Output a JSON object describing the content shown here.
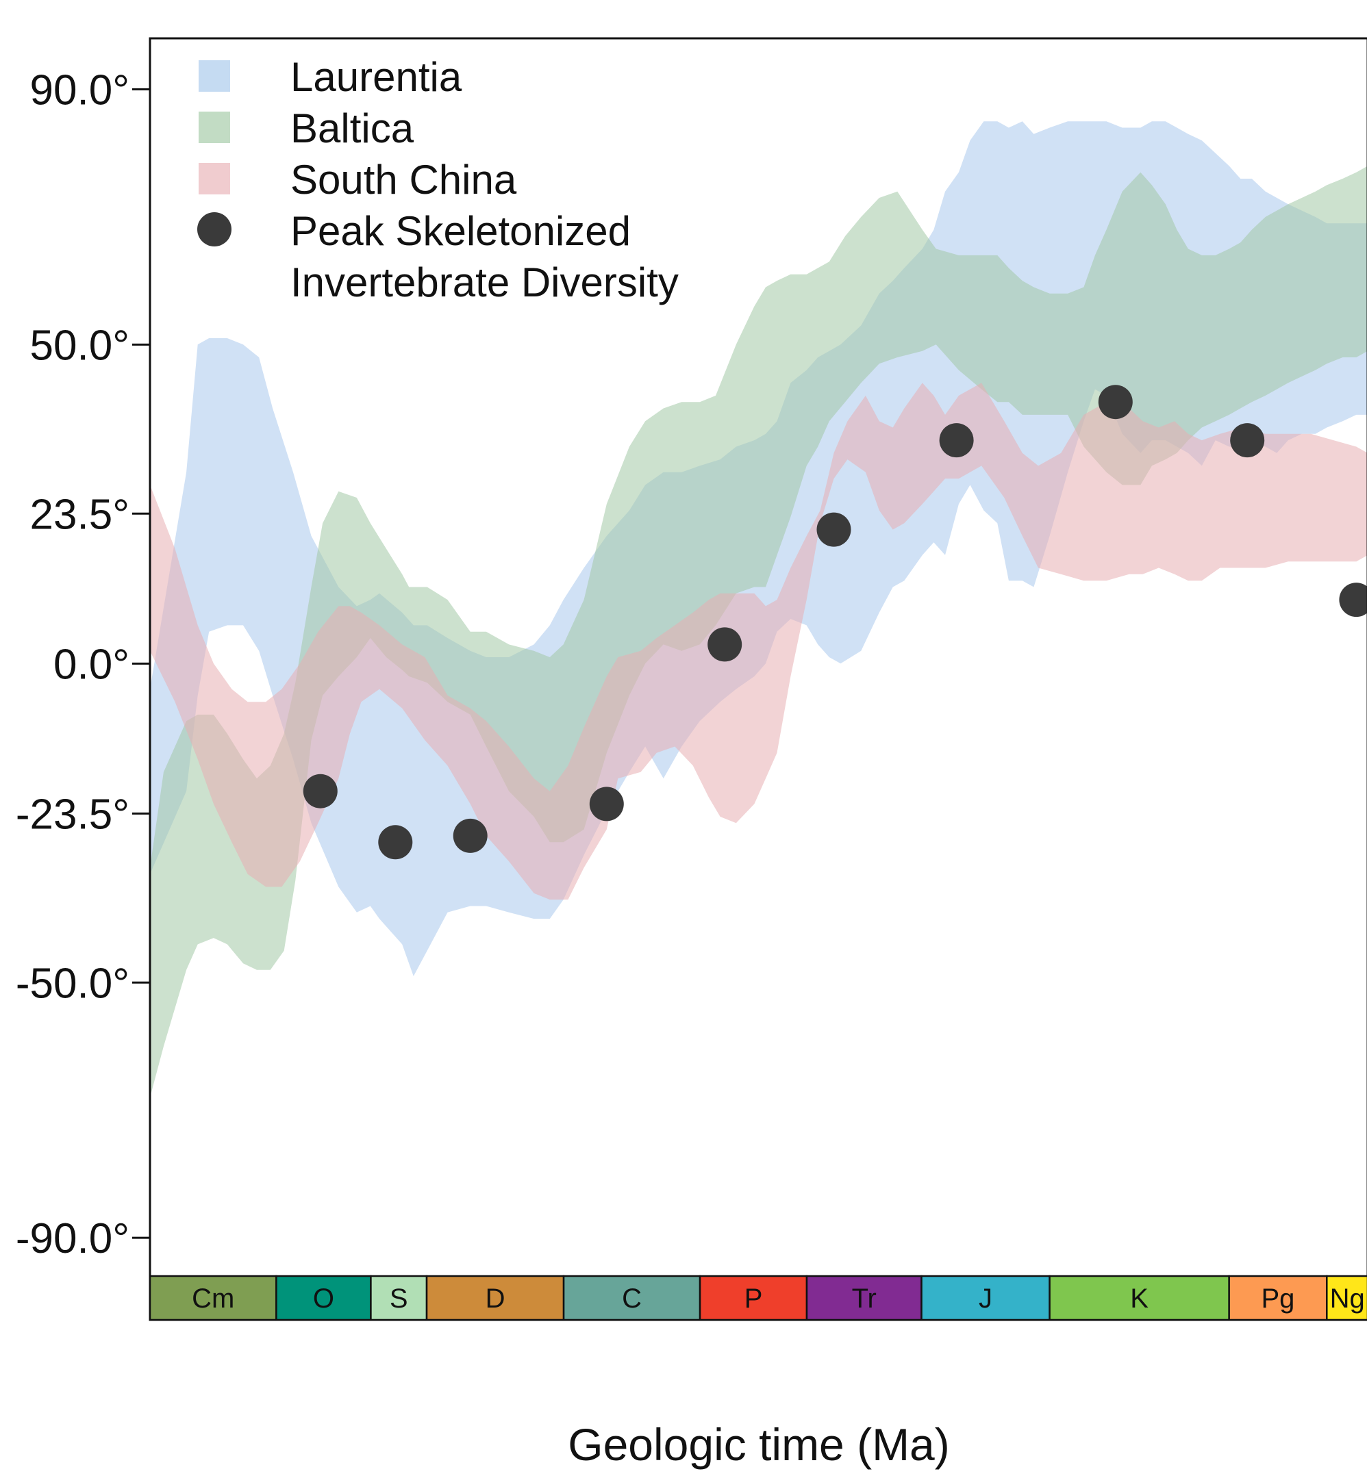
{
  "chart_data": {
    "type": "area",
    "title": "",
    "xlabel": "Geologic time (Ma)",
    "ylabel": "",
    "x_unit": "Ma",
    "xlim": [
      541,
      5
    ],
    "ylim": [
      -96,
      98
    ],
    "y_ticks": [
      {
        "value": 90,
        "label": "90.0°"
      },
      {
        "value": 50,
        "label": "50.0°"
      },
      {
        "value": 23.5,
        "label": "23.5°"
      },
      {
        "value": 0,
        "label": "0.0°"
      },
      {
        "value": -23.5,
        "label": "-23.5°"
      },
      {
        "value": -50,
        "label": "-50.0°"
      },
      {
        "value": -90,
        "label": "-90.0°"
      }
    ],
    "grid": false,
    "legend_position": "top-left",
    "legend": [
      {
        "label": "Laurentia",
        "kind": "band",
        "color": "#c5dbf2"
      },
      {
        "label": "Baltica",
        "kind": "band",
        "color": "#c2dcc4"
      },
      {
        "label": "South China",
        "kind": "band",
        "color": "#f0cccf"
      },
      {
        "label": "Peak Skeletonized",
        "label2": "Invertebrate Diversity",
        "kind": "point",
        "color": "#3a3a3a"
      }
    ],
    "series": [
      {
        "name": "Laurentia",
        "type": "band",
        "color": "#a9c8ec",
        "opacity": 0.55,
        "x": [
          541,
          525,
          520,
          515,
          507,
          500,
          493,
          487,
          478,
          470,
          458,
          450,
          444,
          440,
          430,
          425,
          419,
          410,
          400,
          393,
          383,
          372,
          365,
          359,
          350,
          340,
          330,
          323,
          315,
          307,
          299,
          290,
          283,
          275,
          270,
          265,
          259,
          252,
          247,
          242,
          237,
          228,
          220,
          214,
          209,
          201,
          196,
          191,
          185,
          180,
          174,
          168,
          163,
          157,
          152,
          145,
          137,
          130,
          125,
          120,
          113,
          105,
          100,
          94,
          89,
          84,
          78,
          72,
          66,
          61,
          56,
          50,
          45,
          40,
          34,
          28,
          23,
          16,
          10,
          5
        ],
        "lower": [
          -33,
          -20,
          -5,
          5,
          6,
          6,
          2,
          -5,
          -15,
          -25,
          -35,
          -39,
          -38,
          -40,
          -44,
          -49,
          -45,
          -39,
          -38,
          -38,
          -39,
          -40,
          -40,
          -37,
          -30,
          -23,
          -17,
          -13,
          -18,
          -13,
          -9,
          -6,
          -4,
          -2,
          0,
          5,
          7,
          6,
          3,
          1,
          0,
          2,
          8,
          12,
          13,
          17,
          19,
          17,
          25,
          28,
          24,
          22,
          13,
          13,
          12,
          20,
          30,
          38,
          43,
          42,
          36,
          33,
          35,
          35,
          34,
          33,
          31,
          35,
          34,
          34,
          35,
          34,
          33,
          35,
          36,
          36,
          37,
          38,
          39,
          39
        ],
        "upper": [
          -4,
          30,
          50,
          51,
          51,
          50,
          48,
          40,
          30,
          20,
          12,
          9,
          10,
          11,
          8,
          6,
          6,
          4,
          2,
          1,
          1,
          3,
          6,
          10,
          15,
          20,
          24,
          28,
          30,
          30,
          31,
          32,
          34,
          35,
          36,
          38,
          44,
          46,
          48,
          49,
          50,
          53,
          58,
          60,
          62,
          65,
          68,
          74,
          77,
          82,
          85,
          85,
          84,
          85,
          83,
          84,
          85,
          85,
          85,
          85,
          84,
          84,
          85,
          85,
          84,
          83,
          82,
          80,
          78,
          76,
          76,
          74,
          73,
          72,
          71,
          70,
          69,
          69,
          69,
          69
        ]
      },
      {
        "name": "Baltica",
        "type": "band",
        "color": "#a3c9a6",
        "opacity": 0.55,
        "x": [
          541,
          535,
          525,
          520,
          513,
          507,
          500,
          494,
          488,
          482,
          477,
          470,
          465,
          458,
          450,
          444,
          437,
          430,
          427,
          419,
          410,
          400,
          393,
          383,
          372,
          365,
          359,
          350,
          340,
          330,
          323,
          315,
          307,
          299,
          292,
          283,
          275,
          270,
          265,
          259,
          252,
          247,
          242,
          235,
          228,
          220,
          212,
          201,
          195,
          185,
          175,
          168,
          163,
          157,
          152,
          145,
          137,
          130,
          125,
          120,
          113,
          105,
          100,
          94,
          89,
          84,
          78,
          72,
          66,
          61,
          56,
          50,
          45,
          40,
          34,
          28,
          23,
          16,
          10,
          5
        ],
        "lower": [
          -68,
          -60,
          -48,
          -44,
          -43,
          -44,
          -47,
          -48,
          -48,
          -45,
          -34,
          -12,
          -5,
          -2,
          1,
          4,
          1,
          -1,
          -2,
          -3,
          -6,
          -8,
          -13,
          -20,
          -24,
          -28,
          -28,
          -26,
          -14,
          -5,
          0,
          3,
          2,
          3,
          6,
          11,
          12,
          12,
          17,
          23,
          31,
          34,
          38,
          41,
          44,
          47,
          48,
          49,
          50,
          46,
          43,
          41,
          41,
          39,
          39,
          39,
          39,
          34,
          32,
          30,
          28,
          28,
          31,
          32,
          33,
          35,
          37,
          38,
          39,
          40,
          41,
          42,
          43,
          44,
          45,
          46,
          47,
          48,
          48,
          49
        ],
        "upper": [
          -32,
          -17,
          -9,
          -8,
          -8,
          -11,
          -15,
          -18,
          -16,
          -11,
          -3,
          12,
          22,
          27,
          26,
          22,
          18,
          14,
          12,
          12,
          10,
          5,
          5,
          3,
          2,
          1,
          3,
          10,
          25,
          34,
          38,
          40,
          41,
          41,
          42,
          50,
          56,
          59,
          60,
          61,
          61,
          62,
          63,
          67,
          70,
          73,
          74,
          68,
          65,
          64,
          64,
          64,
          62,
          60,
          59,
          58,
          58,
          59,
          64,
          68,
          74,
          77,
          75,
          72,
          68,
          65,
          64,
          64,
          65,
          66,
          68,
          70,
          71,
          72,
          73,
          74,
          75,
          76,
          77,
          78
        ]
      },
      {
        "name": "South China",
        "type": "band",
        "color": "#e8aeb2",
        "opacity": 0.55,
        "x": [
          541,
          530,
          520,
          513,
          505,
          498,
          490,
          483,
          475,
          467,
          458,
          453,
          448,
          440,
          430,
          420,
          410,
          400,
          393,
          383,
          372,
          365,
          357,
          350,
          340,
          335,
          325,
          318,
          310,
          302,
          295,
          290,
          283,
          275,
          270,
          265,
          259,
          252,
          246,
          240,
          234,
          226,
          220,
          214,
          209,
          201,
          196,
          191,
          185,
          175,
          165,
          157,
          150,
          140,
          130,
          120,
          110,
          104,
          97,
          90,
          84,
          78,
          70,
          60,
          50,
          40,
          30,
          20,
          10,
          5
        ],
        "lower": [
          2,
          -6,
          -15,
          -22,
          -28,
          -33,
          -35,
          -35,
          -31,
          -25,
          -18,
          -11,
          -6,
          -4,
          -7,
          -12,
          -16,
          -22,
          -27,
          -31,
          -36,
          -37,
          -37,
          -32,
          -26,
          -18,
          -17,
          -14,
          -13,
          -16,
          -21,
          -24,
          -25,
          -22,
          -18,
          -14,
          -2,
          10,
          22,
          29,
          32,
          30,
          24,
          21,
          22,
          25,
          27,
          29,
          29,
          31,
          26,
          20,
          15,
          14,
          13,
          13,
          14,
          14,
          15,
          14,
          13,
          13,
          15,
          15,
          15,
          16,
          16,
          16,
          16,
          17
        ],
        "upper": [
          28,
          18,
          6,
          0,
          -4,
          -6,
          -6,
          -4,
          0,
          5,
          9,
          9,
          8,
          6,
          3,
          1,
          -5,
          -7,
          -9,
          -13,
          -18,
          -20,
          -16,
          -10,
          -2,
          1,
          2,
          4,
          6,
          8,
          10,
          11,
          11,
          11,
          9,
          10,
          15,
          20,
          24,
          33,
          38,
          42,
          38,
          37,
          40,
          44,
          42,
          39,
          42,
          44,
          38,
          33,
          31,
          33,
          39,
          41,
          40,
          38,
          37,
          38,
          36,
          35,
          36,
          37,
          36,
          36,
          36,
          35,
          34,
          33
        ]
      }
    ],
    "points": {
      "name": "Peak Skeletonized Invertebrate Diversity",
      "color": "#3a3a3a",
      "x": [
        466,
        433,
        400,
        340,
        288,
        240,
        186,
        116,
        58,
        10
      ],
      "y": [
        -20,
        -28,
        -27,
        -22,
        3,
        21,
        35,
        41,
        35,
        10
      ]
    },
    "periods": [
      {
        "label": "Cm",
        "start": 541,
        "end": 485.4,
        "color": "#7f9e52"
      },
      {
        "label": "O",
        "start": 485.4,
        "end": 443.8,
        "color": "#00937a"
      },
      {
        "label": "S",
        "start": 443.8,
        "end": 419.2,
        "color": "#b1dfb5"
      },
      {
        "label": "D",
        "start": 419.2,
        "end": 358.9,
        "color": "#cd8b3a"
      },
      {
        "label": "C",
        "start": 358.9,
        "end": 298.9,
        "color": "#67a599"
      },
      {
        "label": "P",
        "start": 298.9,
        "end": 251.9,
        "color": "#ef3f2b"
      },
      {
        "label": "Tr",
        "start": 251.9,
        "end": 201.4,
        "color": "#812b92"
      },
      {
        "label": "J",
        "start": 201.4,
        "end": 145,
        "color": "#34b2c9"
      },
      {
        "label": "K",
        "start": 145,
        "end": 66,
        "color": "#7fc64e"
      },
      {
        "label": "Pg",
        "start": 66,
        "end": 23,
        "color": "#fd9a52"
      },
      {
        "label": "Ng",
        "start": 23,
        "end": 2.58,
        "color": "#ffe619"
      }
    ]
  }
}
